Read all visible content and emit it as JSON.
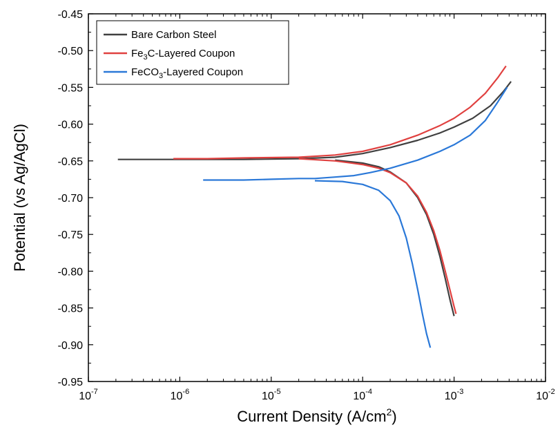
{
  "chart_data": {
    "type": "line",
    "xlabel": "Current Density (A/cm",
    "xlabel_sup": "2",
    "xlabel_end": ")",
    "ylabel": "Potential (vs Ag/AgCl)",
    "xscale": "log",
    "xlim": [
      1e-07,
      0.01
    ],
    "ylim": [
      -0.95,
      -0.45
    ],
    "x_ticks": [
      {
        "base": "10",
        "exp": "-7",
        "value": 1e-07
      },
      {
        "base": "10",
        "exp": "-6",
        "value": 1e-06
      },
      {
        "base": "10",
        "exp": "-5",
        "value": 1e-05
      },
      {
        "base": "10",
        "exp": "-4",
        "value": 0.0001
      },
      {
        "base": "10",
        "exp": "-3",
        "value": 0.001
      },
      {
        "base": "10",
        "exp": "-2",
        "value": 0.01
      }
    ],
    "y_ticks": [
      "-0.45",
      "-0.50",
      "-0.55",
      "-0.60",
      "-0.65",
      "-0.70",
      "-0.75",
      "-0.80",
      "-0.85",
      "-0.90",
      "-0.95"
    ],
    "grid": false,
    "legend_position": "top-left",
    "series": [
      {
        "name_parts": [
          {
            "t": "Bare Carbon Steel"
          }
        ],
        "color": "#404040",
        "x": [
          2.1e-07,
          1e-06,
          5e-06,
          2e-05,
          5e-05,
          0.0001,
          0.0002,
          0.0004,
          0.0007,
          0.001,
          0.0016,
          0.0025,
          0.0035,
          0.0042
        ],
        "y": [
          -0.648,
          -0.648,
          -0.648,
          -0.647,
          -0.645,
          -0.64,
          -0.632,
          -0.622,
          -0.612,
          -0.604,
          -0.592,
          -0.575,
          -0.555,
          -0.542
        ],
        "x2": [
          5e-05,
          0.0001,
          0.00015,
          0.0002,
          0.0003,
          0.0004,
          0.0005,
          0.0006,
          0.0007,
          0.0008,
          0.0009,
          0.001
        ],
        "y2": [
          -0.649,
          -0.653,
          -0.658,
          -0.665,
          -0.68,
          -0.7,
          -0.723,
          -0.75,
          -0.78,
          -0.81,
          -0.838,
          -0.861
        ]
      },
      {
        "name_parts": [
          {
            "t": "Fe"
          },
          {
            "t": "3",
            "sub": true
          },
          {
            "t": "C-Layered Coupon"
          }
        ],
        "color": "#e0403f",
        "x": [
          8.5e-07,
          2e-06,
          5e-06,
          2e-05,
          5e-05,
          0.0001,
          0.0002,
          0.0004,
          0.0007,
          0.001,
          0.0015,
          0.0022,
          0.003,
          0.0037
        ],
        "y": [
          -0.647,
          -0.647,
          -0.646,
          -0.645,
          -0.642,
          -0.637,
          -0.628,
          -0.615,
          -0.602,
          -0.592,
          -0.577,
          -0.558,
          -0.537,
          -0.521
        ],
        "x2": [
          2e-05,
          5e-05,
          0.0001,
          0.00015,
          0.0002,
          0.0003,
          0.0004,
          0.0005,
          0.0006,
          0.0007,
          0.0008,
          0.0009,
          0.001,
          0.00105
        ],
        "y2": [
          -0.647,
          -0.65,
          -0.655,
          -0.66,
          -0.666,
          -0.68,
          -0.698,
          -0.72,
          -0.745,
          -0.772,
          -0.8,
          -0.825,
          -0.848,
          -0.858
        ]
      },
      {
        "name_parts": [
          {
            "t": "FeCO"
          },
          {
            "t": "3",
            "sub": true
          },
          {
            "t": "-Layered Coupon"
          }
        ],
        "color": "#2a78d8",
        "x": [
          1.8e-06,
          5e-06,
          1e-05,
          2e-05,
          3e-05,
          5e-05,
          8e-05,
          0.00012,
          0.0002,
          0.0004,
          0.0007,
          0.001,
          0.0015,
          0.0022,
          0.003,
          0.0038
        ],
        "y": [
          -0.676,
          -0.676,
          -0.675,
          -0.674,
          -0.674,
          -0.672,
          -0.67,
          -0.666,
          -0.66,
          -0.649,
          -0.637,
          -0.628,
          -0.615,
          -0.595,
          -0.57,
          -0.55
        ],
        "x2": [
          3e-05,
          6e-05,
          0.0001,
          0.00015,
          0.0002,
          0.00025,
          0.0003,
          0.00035,
          0.0004,
          0.00045,
          0.0005,
          0.00055
        ],
        "y2": [
          -0.677,
          -0.678,
          -0.682,
          -0.69,
          -0.704,
          -0.725,
          -0.755,
          -0.79,
          -0.825,
          -0.858,
          -0.885,
          -0.904
        ]
      }
    ]
  }
}
